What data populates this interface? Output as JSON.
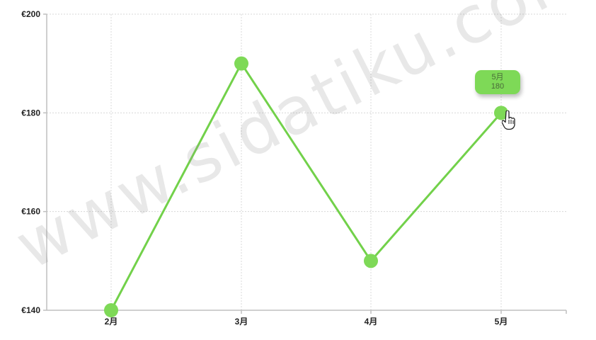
{
  "chart_data": {
    "type": "line",
    "categories": [
      "2月",
      "3月",
      "4月",
      "5月"
    ],
    "values": [
      140,
      190,
      150,
      180
    ],
    "ylim": [
      140,
      200
    ],
    "yticks": [
      "€200",
      "€180",
      "€160",
      "€140"
    ],
    "ytick_values": [
      200,
      180,
      160,
      140
    ],
    "grid": true,
    "line_color": "#72d14a",
    "marker_color": "#7ed957"
  },
  "tooltip": {
    "label": "5月",
    "value": "180",
    "background": "#7ed957"
  },
  "watermark": "www.sidatiku.com",
  "cursor_icon": "hand-pointer-icon"
}
